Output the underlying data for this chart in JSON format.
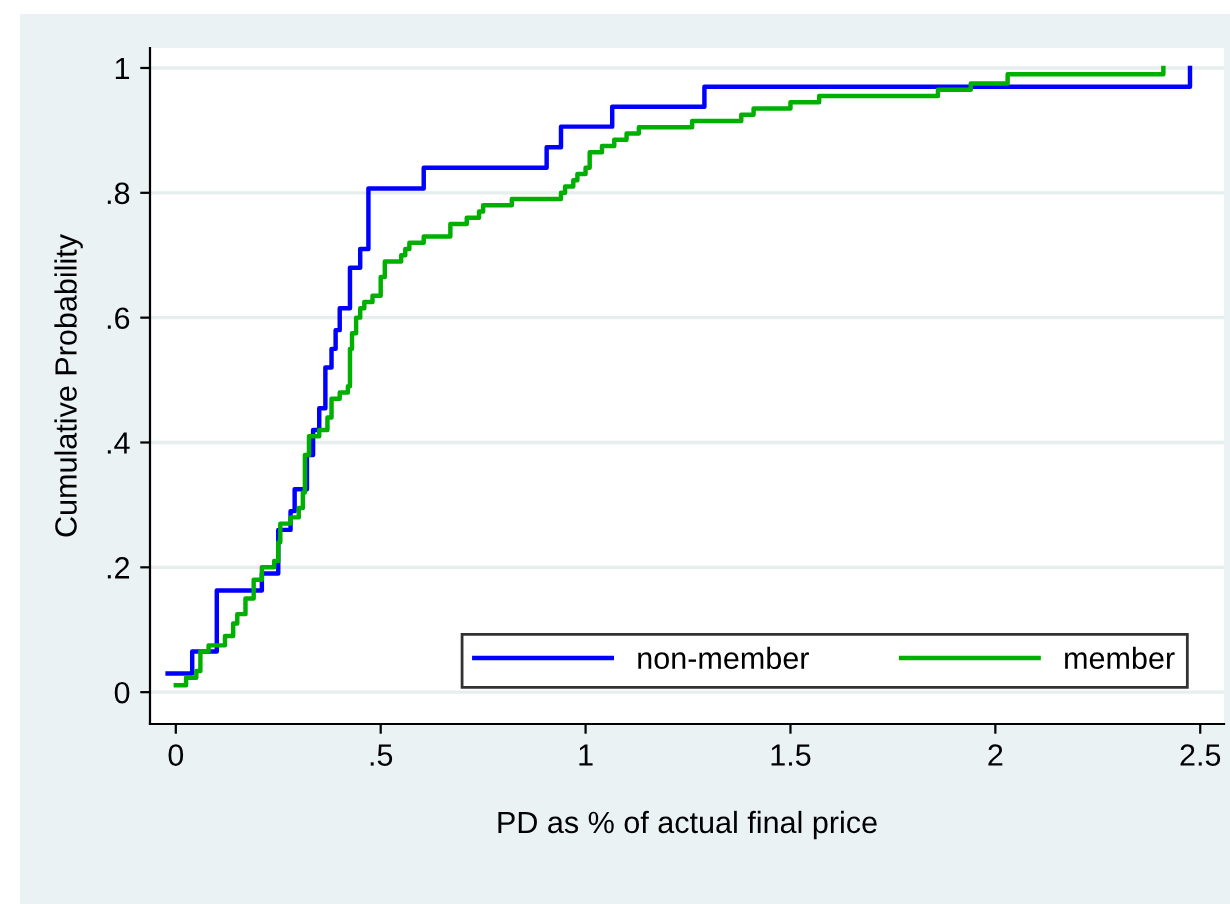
{
  "chart_data": {
    "type": "step",
    "xlabel": "PD as % of actual final price",
    "ylabel": "Cumulative Probability",
    "xlim": [
      -0.063,
      2.558
    ],
    "ylim": [
      -0.051,
      1.032
    ],
    "xticks": [
      0,
      {
        "value": 0.5,
        "label": ".5"
      },
      1,
      1.5,
      2,
      2.5
    ],
    "yticks": [
      0,
      {
        "value": 0.2,
        "label": ".2"
      },
      {
        "value": 0.4,
        "label": ".4"
      },
      {
        "value": 0.6,
        "label": ".6"
      },
      {
        "value": 0.8,
        "label": ".8"
      },
      1
    ],
    "grid": "y",
    "legend": "bottom right",
    "marker": "none",
    "line_style": "solid",
    "series": [
      {
        "name": "non-member",
        "color": "#0000ff",
        "x": [
          -0.02,
          0.04,
          0.1,
          0.21,
          0.25,
          0.28,
          0.29,
          0.32,
          0.335,
          0.35,
          0.365,
          0.38,
          0.39,
          0.4,
          0.425,
          0.45,
          0.47,
          0.605,
          0.905,
          0.94,
          1.065,
          1.29,
          2.475
        ],
        "values": [
          0.03,
          0.065,
          0.163,
          0.19,
          0.26,
          0.29,
          0.325,
          0.38,
          0.42,
          0.455,
          0.52,
          0.55,
          0.58,
          0.615,
          0.68,
          0.71,
          0.807,
          0.84,
          0.873,
          0.906,
          0.938,
          0.97,
          1.0
        ]
      },
      {
        "name": "member",
        "color": "#00b000",
        "x": [
          0.0,
          0.025,
          0.05,
          0.06,
          0.08,
          0.12,
          0.14,
          0.15,
          0.17,
          0.19,
          0.21,
          0.24,
          0.25,
          0.255,
          0.28,
          0.3,
          0.31,
          0.315,
          0.325,
          0.35,
          0.37,
          0.38,
          0.4,
          0.42,
          0.425,
          0.43,
          0.44,
          0.45,
          0.46,
          0.48,
          0.5,
          0.51,
          0.55,
          0.56,
          0.57,
          0.605,
          0.67,
          0.71,
          0.74,
          0.75,
          0.82,
          0.94,
          0.95,
          0.97,
          0.98,
          1.0,
          1.01,
          1.04,
          1.07,
          1.1,
          1.13,
          1.26,
          1.38,
          1.41,
          1.5,
          1.57,
          1.86,
          1.94,
          2.03,
          2.41
        ],
        "values": [
          0.011,
          0.023,
          0.034,
          0.065,
          0.075,
          0.09,
          0.11,
          0.125,
          0.15,
          0.18,
          0.2,
          0.21,
          0.24,
          0.27,
          0.28,
          0.295,
          0.32,
          0.38,
          0.41,
          0.42,
          0.44,
          0.47,
          0.48,
          0.49,
          0.55,
          0.575,
          0.6,
          0.615,
          0.625,
          0.635,
          0.665,
          0.69,
          0.7,
          0.71,
          0.72,
          0.73,
          0.75,
          0.76,
          0.77,
          0.78,
          0.79,
          0.8,
          0.81,
          0.82,
          0.83,
          0.84,
          0.865,
          0.875,
          0.885,
          0.895,
          0.905,
          0.915,
          0.925,
          0.935,
          0.945,
          0.955,
          0.965,
          0.975,
          0.99,
          1.0
        ]
      }
    ]
  }
}
